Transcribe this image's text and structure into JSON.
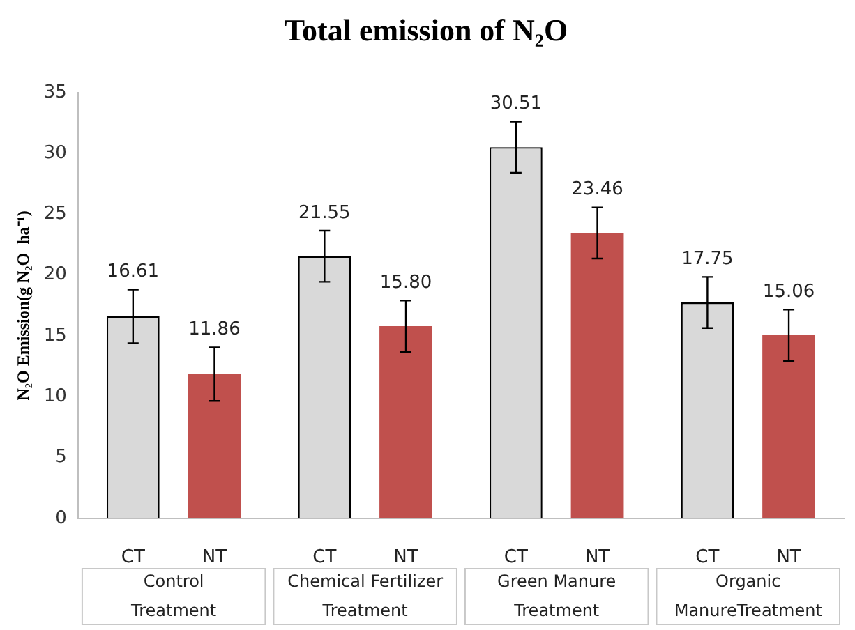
{
  "chart_data": {
    "type": "bar",
    "title": "Total emission of N₂O",
    "ylabel": "N₂O Emission(g N₂O  ha⁻¹)",
    "categories": [
      "Control Treatment",
      "Chemical Fertilizer Treatment",
      "Green Manure Treatment",
      "Organic ManureTreatment"
    ],
    "series": [
      {
        "name": "CT",
        "color": "#d9d9d9",
        "values": [
          16.61,
          21.55,
          30.51,
          17.75
        ],
        "value_labels": [
          "16.61",
          "21.55",
          "30.51",
          "17.75"
        ],
        "errors": [
          2.2,
          2.1,
          2.1,
          2.1
        ]
      },
      {
        "name": "NT",
        "color": "#c0504d",
        "values": [
          11.86,
          15.8,
          23.46,
          15.06
        ],
        "value_labels": [
          "11.86",
          "15.80",
          "23.46",
          "15.06"
        ],
        "errors": [
          2.2,
          2.1,
          2.1,
          2.1
        ]
      }
    ],
    "ylim": [
      0,
      35
    ],
    "yticks": [
      0,
      5,
      10,
      15,
      20,
      25,
      30,
      35
    ],
    "grid": false,
    "legend": false
  }
}
